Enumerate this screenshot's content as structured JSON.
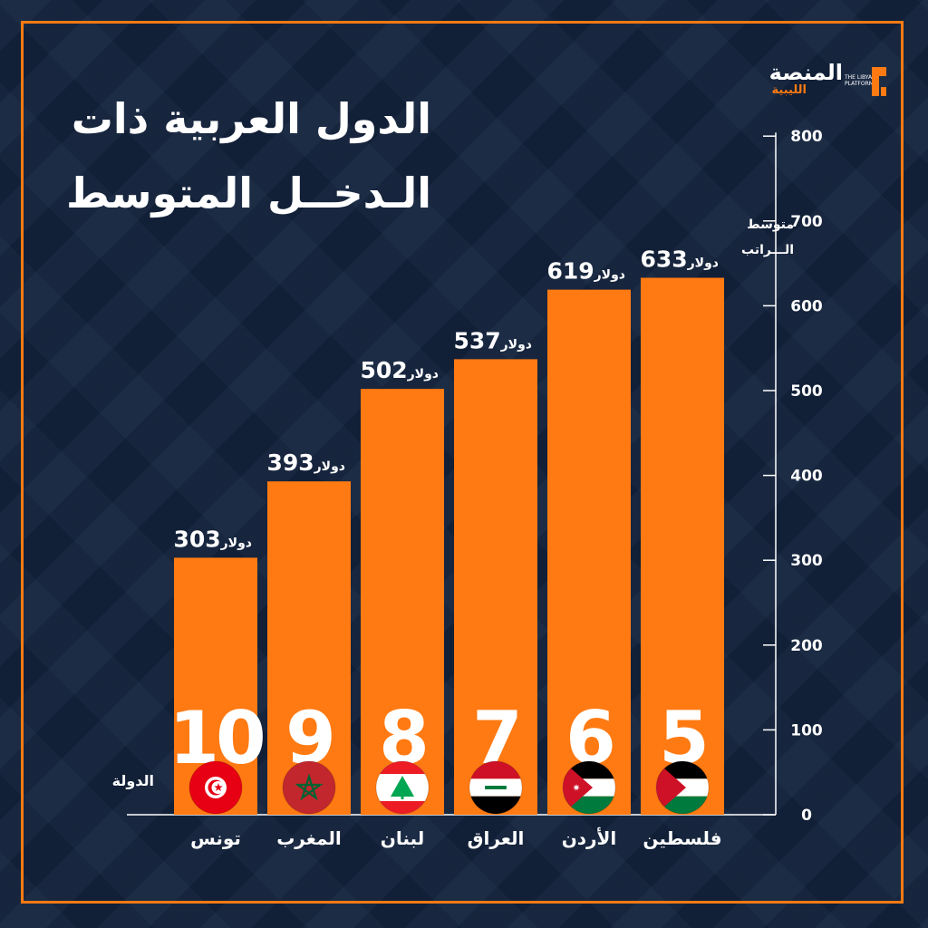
{
  "header": {
    "title_line1": "الدول العربية ذات",
    "title_line2": "الـدخــل المتوسط"
  },
  "logo": {
    "name_ar": "المنصة",
    "sub_ar": "الليبية",
    "name_en_line1": "THE LIBYAN",
    "name_en_line2": "PLATFORM"
  },
  "colors": {
    "background": "#13233d",
    "accent": "#ff7a12",
    "text": "#ffffff"
  },
  "chart_data": {
    "type": "bar",
    "title": "الدول العربية ذات الـدخــل المتوسط",
    "ylabel_line1": "متوسط",
    "ylabel_line2": "الـــراتب",
    "xlabel": "الدولة",
    "ylim": [
      0,
      800
    ],
    "yticks": [
      0,
      100,
      200,
      300,
      400,
      500,
      600,
      700,
      800
    ],
    "y_axis_side": "right",
    "grid": false,
    "unit_label": "دولار",
    "categories": [
      "تونس",
      "المغرب",
      "لبنان",
      "العراق",
      "الأردن",
      "فلسطين"
    ],
    "values": [
      303,
      393,
      502,
      537,
      619,
      633
    ],
    "ranks": [
      "10",
      "9",
      "8",
      "7",
      "6",
      "5"
    ],
    "flags": [
      "tunisia-flag-icon",
      "morocco-flag-icon",
      "lebanon-flag-icon",
      "iraq-flag-icon",
      "jordan-flag-icon",
      "palestine-flag-icon"
    ]
  }
}
